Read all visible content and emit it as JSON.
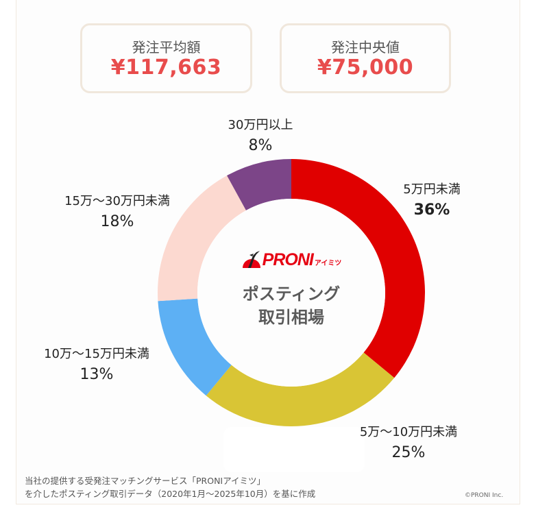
{
  "summary": {
    "average": {
      "label": "発注平均額",
      "value": "¥117,663"
    },
    "median": {
      "label": "発注中央値",
      "value": "¥75,000"
    }
  },
  "center": {
    "logo_text": "PRONI",
    "logo_sub": "アイミツ",
    "title_line1": "ポスティング",
    "title_line2": "取引相場"
  },
  "colors": {
    "red": "#e00000",
    "yellow": "#d9c535",
    "blue": "#5db0f4",
    "pink": "#fcd9d0",
    "purple": "#7c4588",
    "accent": "#e84c4c"
  },
  "chart_data": {
    "type": "pie",
    "subtype": "donut",
    "title": "ポスティング取引相場",
    "categories": [
      "5万円未満",
      "5万〜10万円未満",
      "10万〜15万円未満",
      "15万〜30万円未満",
      "30万円以上"
    ],
    "values": [
      36,
      25,
      13,
      18,
      8
    ],
    "unit": "%",
    "colors": [
      "#e00000",
      "#d9c535",
      "#5db0f4",
      "#fcd9d0",
      "#7c4588"
    ],
    "start_angle": "12 o'clock, clockwise",
    "labels": [
      {
        "name": "5万円未満",
        "pct": "36%"
      },
      {
        "name": "5万〜10万円未満",
        "pct": "25%"
      },
      {
        "name": "10万〜15万円未満",
        "pct": "13%"
      },
      {
        "name": "15万〜30万円未満",
        "pct": "18%"
      },
      {
        "name": "30万円以上",
        "pct": "8%"
      }
    ]
  },
  "footnote": {
    "line1": "当社の提供する受発注マッチングサービス「PRONIアイミツ」",
    "line2": "を介したポスティング取引データ（2020年1月〜2025年10月）を基に作成"
  },
  "copyright": "©PRONI Inc."
}
